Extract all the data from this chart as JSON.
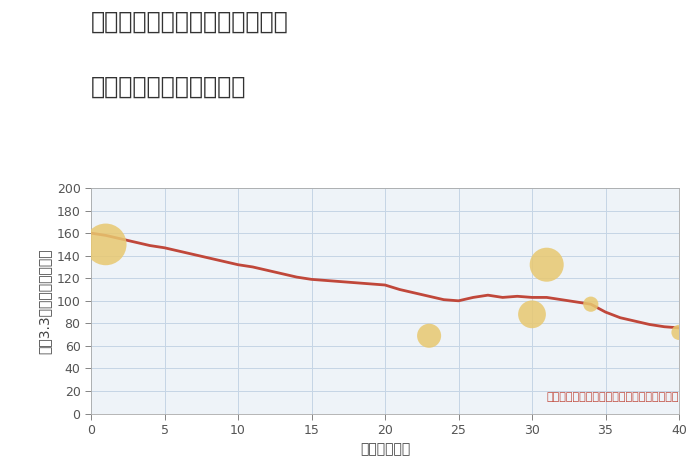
{
  "title_line1": "愛知県名古屋市中村区森末町の",
  "title_line2": "築年数別中古戸建て価格",
  "xlabel": "築年数（年）",
  "ylabel": "坪（3.3㎡）単価（万円）",
  "annotation": "円の大きさは、取引のあった物件面積を示す",
  "background_color": "#ffffff",
  "plot_bg_color": "#eef3f8",
  "grid_color": "#c5d5e5",
  "line_color": "#c0473a",
  "line_x": [
    0,
    1,
    2,
    3,
    4,
    5,
    6,
    7,
    8,
    9,
    10,
    11,
    12,
    13,
    14,
    15,
    16,
    17,
    18,
    19,
    20,
    21,
    22,
    23,
    24,
    25,
    26,
    27,
    28,
    29,
    30,
    31,
    32,
    33,
    34,
    35,
    36,
    37,
    38,
    39,
    40
  ],
  "line_y": [
    160,
    158,
    155,
    152,
    149,
    147,
    144,
    141,
    138,
    135,
    132,
    130,
    127,
    124,
    121,
    119,
    118,
    117,
    116,
    115,
    114,
    110,
    107,
    104,
    101,
    100,
    103,
    105,
    103,
    104,
    103,
    103,
    101,
    99,
    97,
    90,
    85,
    82,
    79,
    77,
    76
  ],
  "scatter_x": [
    1,
    23,
    30,
    31,
    34,
    40
  ],
  "scatter_y": [
    150,
    69,
    88,
    132,
    97,
    72
  ],
  "scatter_sizes": [
    900,
    300,
    400,
    600,
    120,
    120
  ],
  "scatter_color": "#e8c870",
  "scatter_alpha": 0.85,
  "xlim": [
    0,
    40
  ],
  "ylim": [
    0,
    200
  ],
  "xticks": [
    0,
    5,
    10,
    15,
    20,
    25,
    30,
    35,
    40
  ],
  "yticks": [
    0,
    20,
    40,
    60,
    80,
    100,
    120,
    140,
    160,
    180,
    200
  ],
  "title_fontsize": 17,
  "axis_fontsize": 10,
  "tick_fontsize": 9,
  "annotation_fontsize": 8,
  "annotation_color": "#c0473a",
  "title_color": "#333333",
  "tick_color": "#555555",
  "label_color": "#444444"
}
